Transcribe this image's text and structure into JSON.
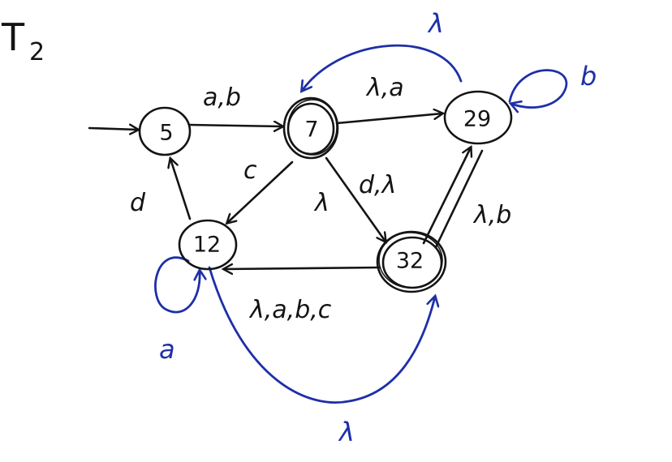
{
  "title": {
    "main": "T",
    "sub": "2"
  },
  "states": [
    {
      "id": "5",
      "label": "5"
    },
    {
      "id": "7",
      "label": "7"
    },
    {
      "id": "29",
      "label": "29"
    },
    {
      "id": "12",
      "label": "12"
    },
    {
      "id": "32",
      "label": "32"
    }
  ],
  "edge_labels": {
    "e5_7": "a,b",
    "e7_29": "λ,a",
    "e29_7": "λ",
    "loop29": "b",
    "e7_12": "c",
    "e12_5": "d",
    "e7_32": "λ",
    "e7_32b": "d,λ",
    "e32_29": "λ,b",
    "e32_12": "λ,a,b,c",
    "loop12": "a",
    "e12_32": "λ"
  },
  "colors": {
    "ink": "#141414",
    "added": "#1e2fa8"
  }
}
